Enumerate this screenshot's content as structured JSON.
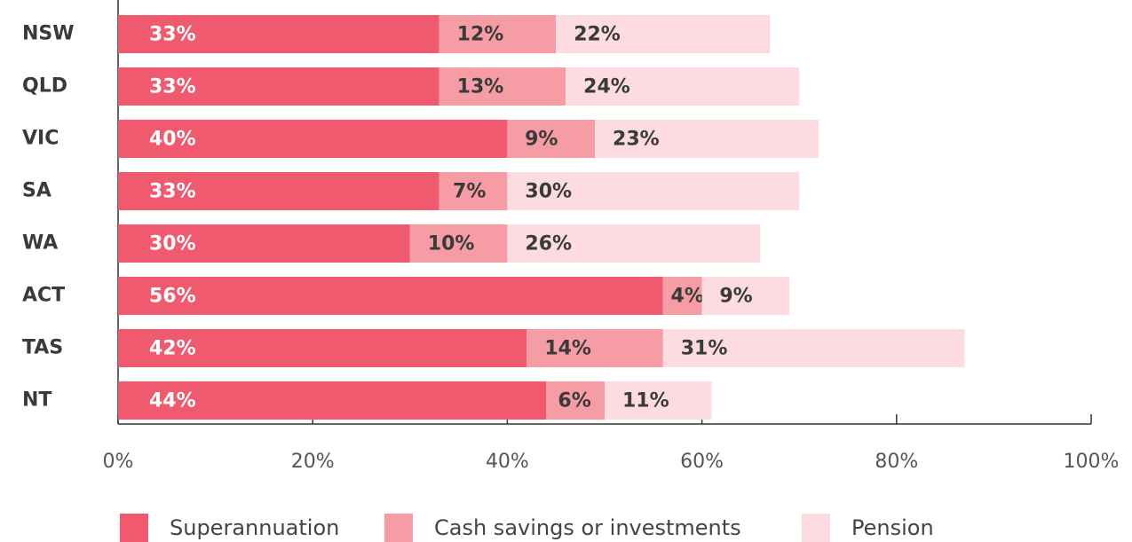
{
  "chart_data": {
    "type": "stacked-bar-horizontal",
    "categories": [
      "NSW",
      "QLD",
      "VIC",
      "SA",
      "WA",
      "ACT",
      "TAS",
      "NT"
    ],
    "series": [
      {
        "name": "Superannuation",
        "color": "#f05a6e",
        "values": [
          33,
          33,
          40,
          33,
          30,
          56,
          42,
          44
        ],
        "value_labels": [
          "33%",
          "33%",
          "40%",
          "33%",
          "30%",
          "56%",
          "42%",
          "44%"
        ]
      },
      {
        "name": "Cash savings or investments",
        "color": "#f59ca4",
        "values": [
          12,
          13,
          9,
          7,
          10,
          4,
          14,
          6
        ],
        "value_labels": [
          "12%",
          "13%",
          "9%",
          "7%",
          "10%",
          "4%",
          "14%",
          "6%"
        ]
      },
      {
        "name": "Pension",
        "color": "#fcdce0",
        "values": [
          22,
          24,
          23,
          30,
          26,
          9,
          31,
          11
        ],
        "value_labels": [
          "22%",
          "24%",
          "23%",
          "30%",
          "26%",
          "9%",
          "31%",
          "11%"
        ]
      }
    ],
    "xlim": [
      0,
      100
    ],
    "xticks": [
      {
        "value": 0,
        "label": "0%"
      },
      {
        "value": 20,
        "label": "20%"
      },
      {
        "value": 40,
        "label": "40%"
      },
      {
        "value": 60,
        "label": "60%"
      },
      {
        "value": 80,
        "label": "80%"
      },
      {
        "value": 100,
        "label": "100%"
      }
    ],
    "legend": "bottom"
  }
}
